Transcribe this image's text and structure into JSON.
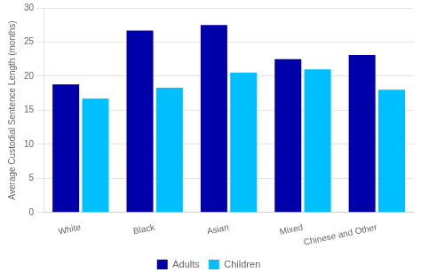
{
  "chart_data": {
    "type": "bar",
    "categories": [
      "White",
      "Black",
      "Asian",
      "Mixed",
      "Chinese and Other"
    ],
    "series": [
      {
        "name": "Adults",
        "color": "#0000aa",
        "values": [
          18.8,
          26.7,
          27.5,
          22.5,
          23.1
        ]
      },
      {
        "name": "Children",
        "color": "#00bfff",
        "values": [
          16.7,
          18.3,
          20.5,
          21.0,
          18.0
        ]
      }
    ],
    "ylabel": "Average Custodial Sentence Length (months)",
    "ylim": [
      0,
      30
    ],
    "yticks": [
      0,
      5,
      10,
      15,
      20,
      25,
      30
    ],
    "grid": true,
    "legend": "bottom"
  }
}
